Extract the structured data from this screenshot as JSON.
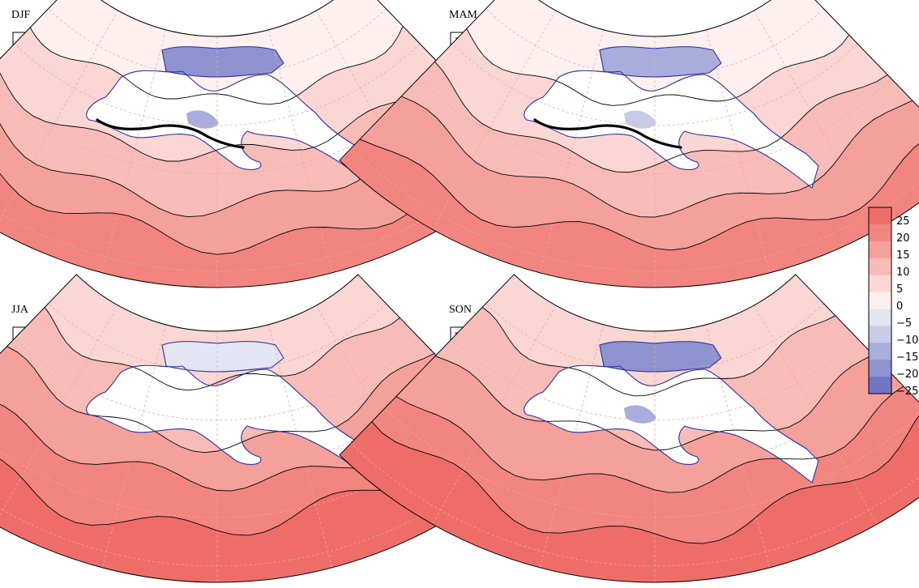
{
  "panels": [
    {
      "season": "DJF",
      "label": "A"
    },
    {
      "season": "MAM",
      "label": "B"
    },
    {
      "season": "JJA",
      "label": "C"
    },
    {
      "season": "SON",
      "label": "D"
    }
  ],
  "colorbar": {
    "labels": [
      "25",
      "20",
      "15",
      "10",
      "5",
      "0",
      "−5",
      "−10",
      "−15",
      "−20",
      "−25"
    ],
    "colors": [
      "#ef6d69",
      "#f2857f",
      "#f4a09b",
      "#f7bbb8",
      "#fad6d4",
      "#fdf0ef",
      "#e4e5f3",
      "#c8cbe8",
      "#a9addc",
      "#8e93cf",
      "#7176c2"
    ]
  },
  "colors": {
    "coastline": "#2b2f9e",
    "graticule": "#f2a6a0",
    "land": "#ffffff"
  }
}
